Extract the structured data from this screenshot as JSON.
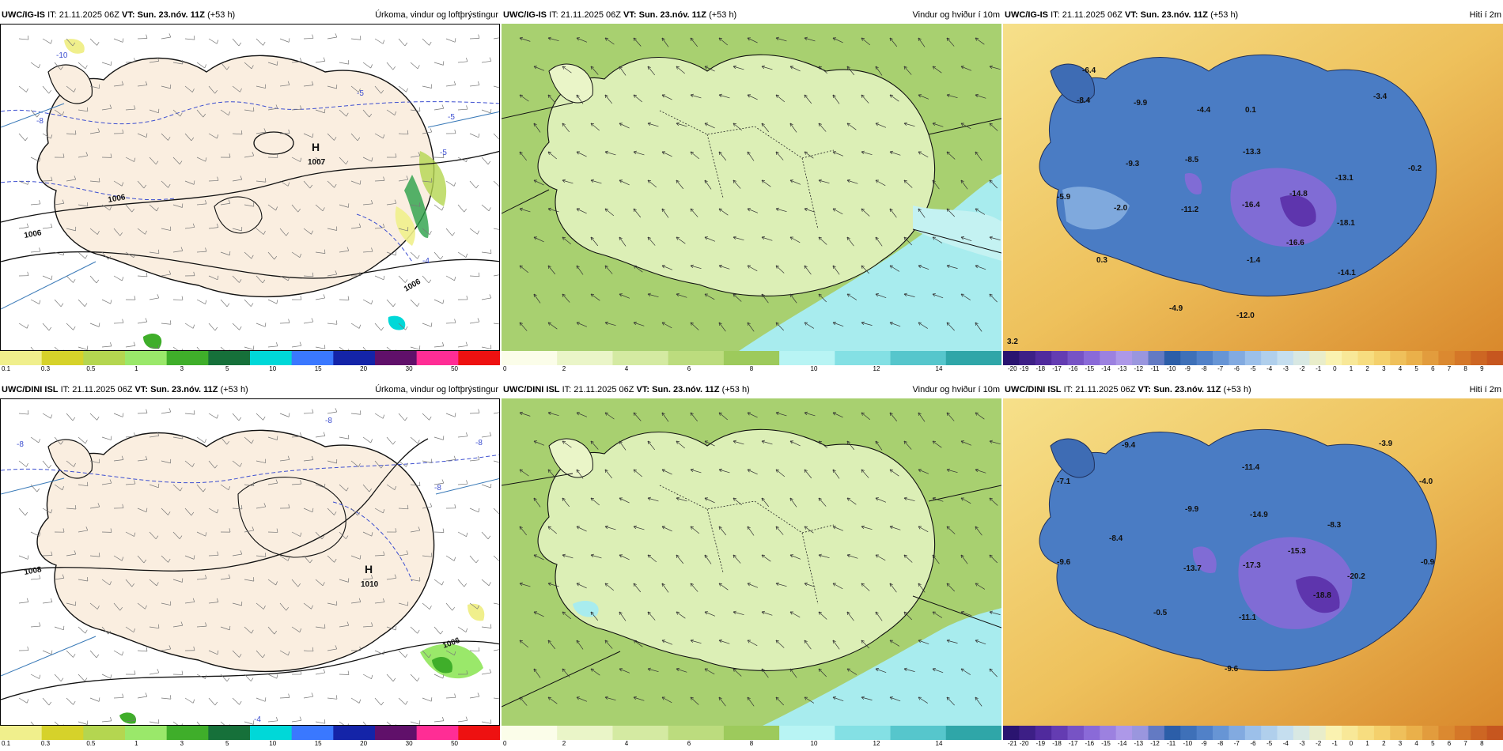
{
  "panels": [
    {
      "id": "p1",
      "model": "UWC/IG-IS",
      "it": "IT: 21.11.2025 06Z",
      "vt_label": "VT:",
      "vt": "Sun. 23.nóv. 11Z",
      "lead": "(+53 h)",
      "field": "Úrkoma, vindur og loftþrýstingur",
      "type": "precip",
      "scale": [
        "0.1",
        "0.3",
        "0.5",
        "1",
        "3",
        "5",
        "10",
        "15",
        "20",
        "30",
        "50"
      ],
      "pressure_high": {
        "label": "H",
        "value": "1007"
      },
      "isobars": [
        "1006",
        "1006",
        "1006"
      ],
      "temp_contours": [
        "-10",
        "-8",
        "-5",
        "-5",
        "-4",
        "-5"
      ]
    },
    {
      "id": "p2",
      "model": "UWC/IG-IS",
      "it": "IT: 21.11.2025 06Z",
      "vt_label": "VT:",
      "vt": "Sun. 23.nóv. 11Z",
      "lead": "(+53 h)",
      "field": "Vindur og hviður í 10m",
      "type": "wind",
      "scale": [
        "0",
        "2",
        "4",
        "6",
        "8",
        "10",
        "12",
        "14"
      ]
    },
    {
      "id": "p3",
      "model": "UWC/IG-IS",
      "it": "IT: 21.11.2025 06Z",
      "vt_label": "VT:",
      "vt": "Sun. 23.nóv. 11Z",
      "lead": "(+53 h)",
      "field": "Hiti í 2m",
      "type": "temp",
      "scale": [
        "-20",
        "-19",
        "-18",
        "-17",
        "-16",
        "-15",
        "-14",
        "-13",
        "-12",
        "-11",
        "-10",
        "-9",
        "-8",
        "-7",
        "-6",
        "-5",
        "-4",
        "-3",
        "-2",
        "-1",
        "0",
        "1",
        "2",
        "3",
        "4",
        "5",
        "6",
        "7",
        "8",
        "9"
      ],
      "corner_value": "3.2",
      "temps": [
        "-6.4",
        "-8.4",
        "-9.9",
        "-4.4",
        "0.1",
        "-3.4",
        "-9.3",
        "-8.5",
        "-13.3",
        "-5.9",
        "-2.0",
        "-11.2",
        "-16.4",
        "-14.8",
        "-13.1",
        "-0.2",
        "-18.1",
        "-16.6",
        "0.3",
        "-1.4",
        "-14.1",
        "-4.9",
        "-12.0"
      ]
    },
    {
      "id": "p4",
      "model": "UWC/DINI ISL",
      "it": "IT: 21.11.2025 06Z",
      "vt_label": "VT:",
      "vt": "Sun. 23.nóv. 11Z",
      "lead": "(+53 h)",
      "field": "Úrkoma, vindur og loftþrýstingur",
      "type": "precip",
      "scale": [
        "0.1",
        "0.3",
        "0.5",
        "1",
        "3",
        "5",
        "10",
        "15",
        "20",
        "30",
        "50"
      ],
      "pressure_high": {
        "label": "H",
        "value": "1010"
      },
      "isobars": [
        "1008",
        "1006"
      ],
      "temp_contours": [
        "-8",
        "-8",
        "-8",
        "-8",
        "-4"
      ]
    },
    {
      "id": "p5",
      "model": "UWC/DINI ISL",
      "it": "IT: 21.11.2025 06Z",
      "vt_label": "VT:",
      "vt": "Sun. 23.nóv. 11Z",
      "lead": "(+53 h)",
      "field": "Vindur og hviður í 10m",
      "type": "wind",
      "scale": [
        "0",
        "2",
        "4",
        "6",
        "8",
        "10",
        "12",
        "14"
      ]
    },
    {
      "id": "p6",
      "model": "UWC/DINI ISL",
      "it": "IT: 21.11.2025 06Z",
      "vt_label": "VT:",
      "vt": "Sun. 23.nóv. 11Z",
      "lead": "(+53 h)",
      "field": "Hiti í 2m",
      "type": "temp",
      "scale": [
        "-21",
        "-20",
        "-19",
        "-18",
        "-17",
        "-16",
        "-15",
        "-14",
        "-13",
        "-12",
        "-11",
        "-10",
        "-9",
        "-8",
        "-7",
        "-6",
        "-5",
        "-4",
        "-3",
        "-2",
        "-1",
        "0",
        "1",
        "2",
        "3",
        "4",
        "5",
        "6",
        "7",
        "8"
      ],
      "corner_value": "",
      "temps": [
        "-9.4",
        "-3.9",
        "-7.1",
        "-11.4",
        "-4.0",
        "-9.9",
        "-14.9",
        "-8.3",
        "-8.4",
        "-15.3",
        "-9.6",
        "-13.7",
        "-17.3",
        "-20.2",
        "-0.9",
        "-18.8",
        "-0.5",
        "-11.1",
        "-9.6"
      ]
    }
  ],
  "colors": {
    "precip": [
      "#f0ef8c",
      "#d6d22a",
      "#b4d650",
      "#9ae86a",
      "#3fae2a",
      "#16703a",
      "#00d8d8",
      "#3a78ff",
      "#1424a8",
      "#60106a",
      "#ff2d95",
      "#ee1111"
    ],
    "wind": [
      "#fbfde9",
      "#eaf5c8",
      "#d4eaa2",
      "#bcdc7e",
      "#9dca5c",
      "#b8f4f4",
      "#84e0e4",
      "#56c6cc",
      "#2fa6a8"
    ],
    "temp_cold": "#3a6cb8",
    "temp_warm": "#e8a838",
    "land_precip": "#faeee0"
  }
}
